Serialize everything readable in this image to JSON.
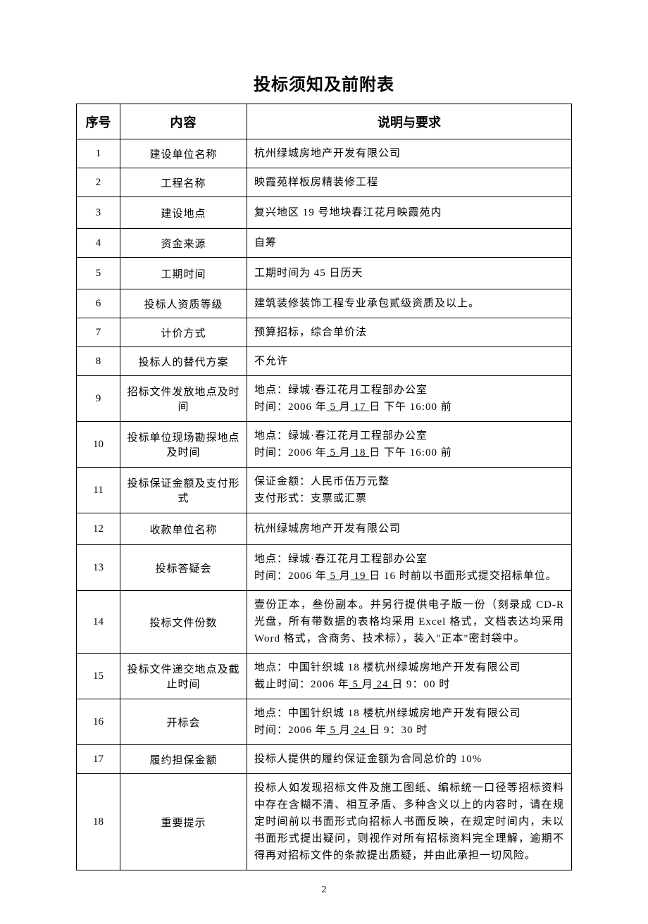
{
  "title": "投标须知及前附表",
  "headers": {
    "num": "序号",
    "content": "内容",
    "desc": "说明与要求"
  },
  "rows": {
    "r1": {
      "num": "1",
      "content": "建设单位名称",
      "desc": "杭州绿城房地产开发有限公司"
    },
    "r2": {
      "num": "2",
      "content": "工程名称",
      "desc": "映霞苑样板房精装修工程"
    },
    "r3": {
      "num": "3",
      "content": "建设地点",
      "desc": "复兴地区 19 号地块春江花月映霞苑内"
    },
    "r4": {
      "num": "4",
      "content": "资金来源",
      "desc": "自筹"
    },
    "r5": {
      "num": "5",
      "content": "工期时间",
      "desc": "工期时间为 45 日历天"
    },
    "r6": {
      "num": "6",
      "content": "投标人资质等级",
      "desc": "建筑装修装饰工程专业承包贰级资质及以上。"
    },
    "r7": {
      "num": "7",
      "content": "计价方式",
      "desc": "预算招标，综合单价法"
    },
    "r8": {
      "num": "8",
      "content": "投标人的替代方案",
      "desc": "不允许"
    },
    "r9": {
      "num": "9",
      "content": "招标文件发放地点及时间",
      "desc_line1a": "地点：绿城·春江花月工程部办公室",
      "desc_line2a": "时间：2006 年",
      "desc_u1": " 5 ",
      "desc_line2b": "月",
      "desc_u2": " 17 ",
      "desc_line2c": "日 下午 16:00 前"
    },
    "r10": {
      "num": "10",
      "content": "投标单位现场勘探地点及时间",
      "desc_line1a": "地点：绿城·春江花月工程部办公室",
      "desc_line2a": "时间：2006 年",
      "desc_u1": " 5 ",
      "desc_line2b": "月",
      "desc_u2": " 18 ",
      "desc_line2c": "日 下午 16:00 前"
    },
    "r11": {
      "num": "11",
      "content": "投标保证金额及支付形式",
      "desc_line1": "保证金额：人民币伍万元整",
      "desc_line2": "支付形式：支票或汇票"
    },
    "r12": {
      "num": "12",
      "content": "收款单位名称",
      "desc": "杭州绿城房地产开发有限公司"
    },
    "r13": {
      "num": "13",
      "content": "投标答疑会",
      "desc_line1a": "地点：绿城·春江花月工程部办公室",
      "desc_line2a": "时间：2006 年",
      "desc_u1": " 5 ",
      "desc_line2b": "月",
      "desc_u2": " 19 ",
      "desc_line2c": "日 16 时前以书面形式提交招标单位。"
    },
    "r14": {
      "num": "14",
      "content": "投标文件份数",
      "desc": "壹份正本，叁份副本。并另行提供电子版一份（刻录成 CD-R 光盘，所有带数据的表格均采用 Excel 格式，文档表达均采用 Word 格式，含商务、技术标），装入\"正本\"密封袋中。"
    },
    "r15": {
      "num": "15",
      "content": "投标文件递交地点及截止时间",
      "desc_line1a": "地点：中国针织城 18 楼杭州绿城房地产开发有限公司",
      "desc_line2a": "截止时间：2006 年",
      "desc_u1": " 5 ",
      "desc_line2b": "月",
      "desc_u2": " 24 ",
      "desc_line2c": "日  9：00 时"
    },
    "r16": {
      "num": "16",
      "content": "开标会",
      "desc_line1a": "地点：中国针织城 18 楼杭州绿城房地产开发有限公司",
      "desc_line2a": "时间：2006 年",
      "desc_u1": " 5 ",
      "desc_line2b": "月",
      "desc_u2": "  24  ",
      "desc_line2c": "日  9：30 时"
    },
    "r17": {
      "num": "17",
      "content": "履约担保金额",
      "desc": "投标人提供的履约保证金额为合同总价的 10%"
    },
    "r18": {
      "num": "18",
      "content": "重要提示",
      "desc": "投标人如发现招标文件及施工图纸、编标统一口径等招标资料中存在含糊不清、相互矛盾、多种含义以上的内容时，请在规定时间前以书面形式向招标人书面反映，在规定时间内，未以书面形式提出疑问，则视作对所有招标资料完全理解，逾期不得再对招标文件的条款提出质疑，并由此承担一切风险。"
    }
  },
  "pageNumber": "2"
}
